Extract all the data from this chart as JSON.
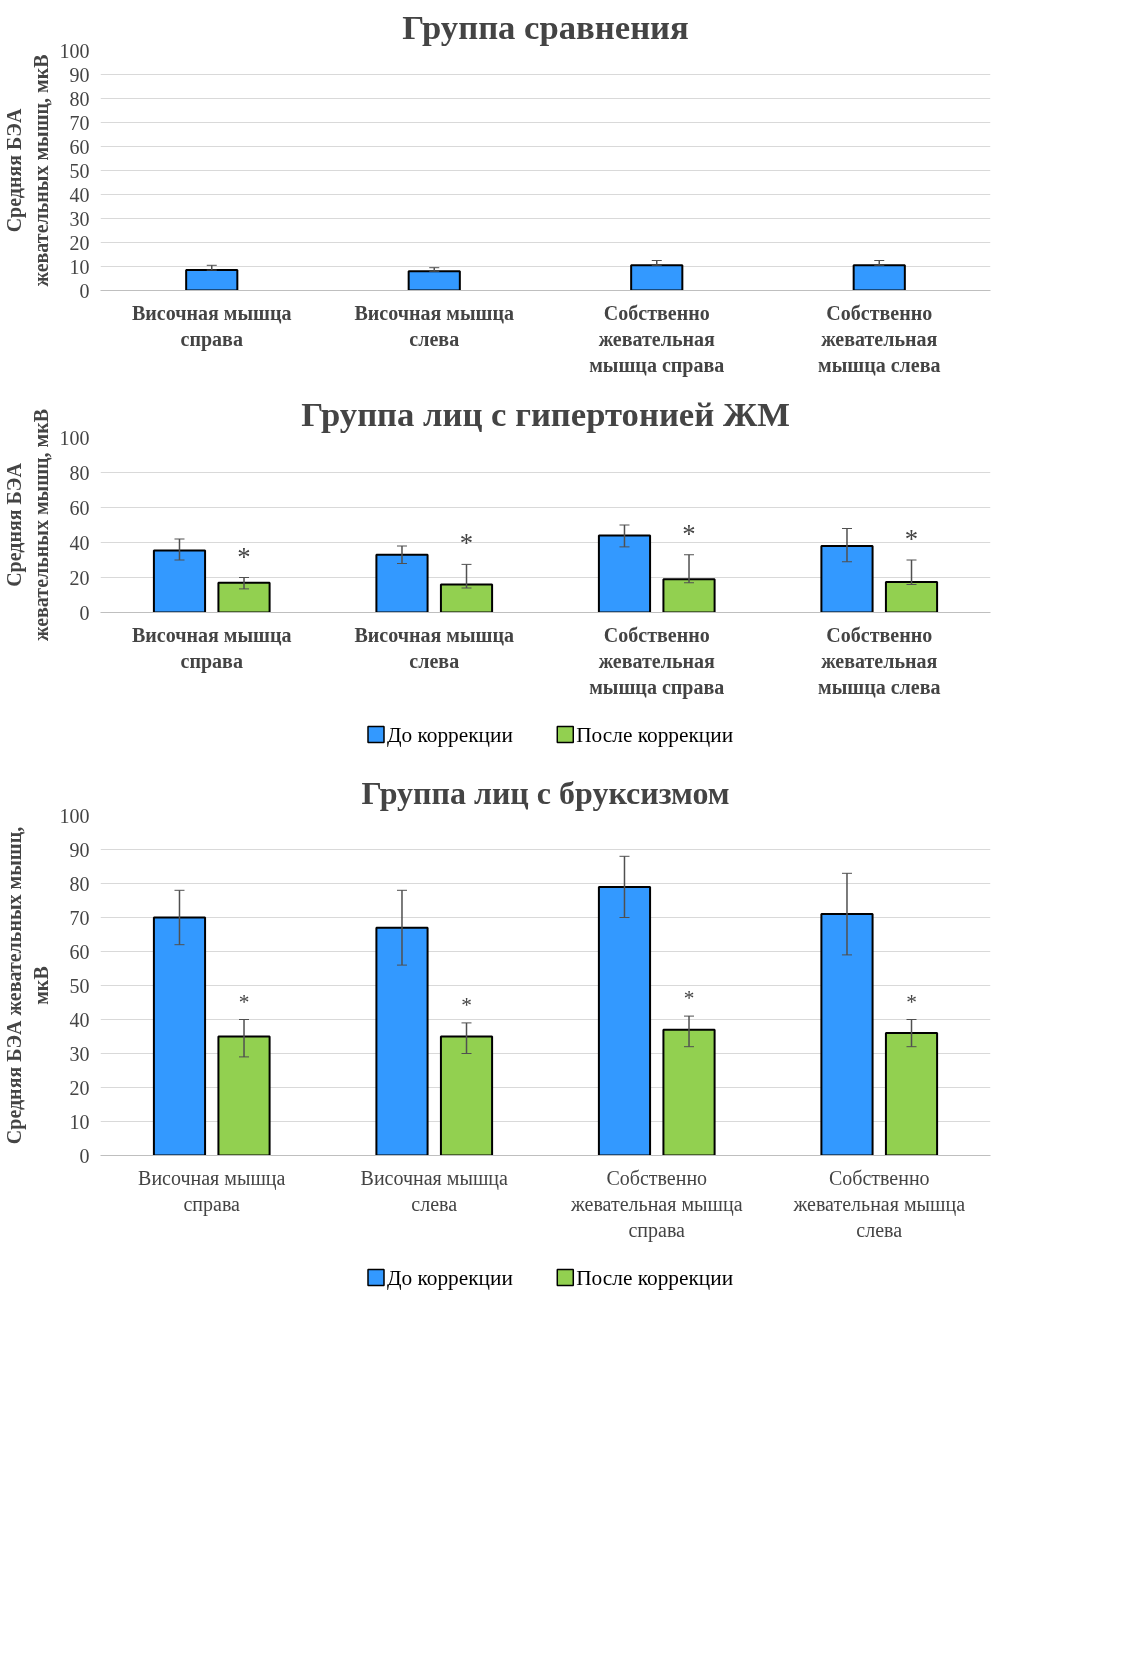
{
  "chart_data": [
    {
      "type": "bar",
      "title": "Группа сравнения",
      "ylabel": "Средняя БЭА жевательных мышц, мкВ",
      "categories": [
        "Височная мышца справа",
        "Височная мышца слева",
        "Собственно жевательная мышца справа",
        "Собственно жевательная мышца слева"
      ],
      "series": [
        {
          "color": "#3399ff",
          "values": [
            8.5,
            8,
            10.5,
            10.5
          ],
          "errors": [
            [
              8.5,
              10.5
            ],
            [
              8,
              9.5
            ],
            [
              10.5,
              12.5
            ],
            [
              10.5,
              12.5
            ]
          ]
        }
      ],
      "ylim": [
        0,
        100
      ],
      "yticks": [
        0,
        10,
        20,
        30,
        40,
        50,
        60,
        70,
        80,
        90,
        100
      ],
      "grid": "y",
      "legend": false
    },
    {
      "type": "bar",
      "title": "Группа лиц с гипертонией ЖМ",
      "ylabel": "Средняя БЭА жевательных мышц, мкВ",
      "categories": [
        "Височная мышца справа",
        "Височная мышца слева",
        "Собственно жевательная мышца справа",
        "Собственно жевательная мышца слева"
      ],
      "series": [
        {
          "name": "До коррекции",
          "color": "#3399ff",
          "values": [
            35.5,
            33,
            44,
            38
          ],
          "errors": [
            [
              30,
              42
            ],
            [
              28,
              38
            ],
            [
              37.5,
              50
            ],
            [
              29,
              48
            ]
          ]
        },
        {
          "name": "После коррекции",
          "color": "#92d050",
          "values": [
            17,
            16,
            19,
            17.5
          ],
          "errors": [
            [
              13.5,
              20
            ],
            [
              14,
              27.5
            ],
            [
              17,
              33
            ],
            [
              16,
              30
            ]
          ]
        }
      ],
      "annotations": [
        "*",
        "*",
        "*",
        "*"
      ],
      "ylim": [
        0,
        100
      ],
      "yticks": [
        0,
        20,
        40,
        60,
        80,
        100
      ],
      "grid": "y",
      "legend": "bottom"
    },
    {
      "type": "bar",
      "title": "Группа лиц с бруксизмом",
      "ylabel": "Средняя БЭА жевательных мышц, мкВ",
      "categories": [
        "Височная мышца справа",
        "Височная мышца слева",
        "Собственно жевательная мышца справа",
        "Собственно жевательная мышца слева"
      ],
      "series": [
        {
          "name": "До коррекции",
          "color": "#3399ff",
          "values": [
            70,
            67,
            79,
            71
          ],
          "errors": [
            [
              62,
              78
            ],
            [
              56,
              78
            ],
            [
              70,
              88
            ],
            [
              59,
              83
            ]
          ]
        },
        {
          "name": "После коррекции",
          "color": "#92d050",
          "values": [
            35,
            35,
            37,
            36
          ],
          "errors": [
            [
              29,
              40
            ],
            [
              30,
              39
            ],
            [
              32,
              41
            ],
            [
              32,
              40
            ]
          ]
        }
      ],
      "annotations": [
        "*",
        "*",
        "*",
        "*"
      ],
      "ylim": [
        0,
        100
      ],
      "yticks": [
        0,
        10,
        20,
        30,
        40,
        50,
        60,
        70,
        80,
        90,
        100
      ],
      "grid": "y",
      "legend": "bottom"
    }
  ]
}
